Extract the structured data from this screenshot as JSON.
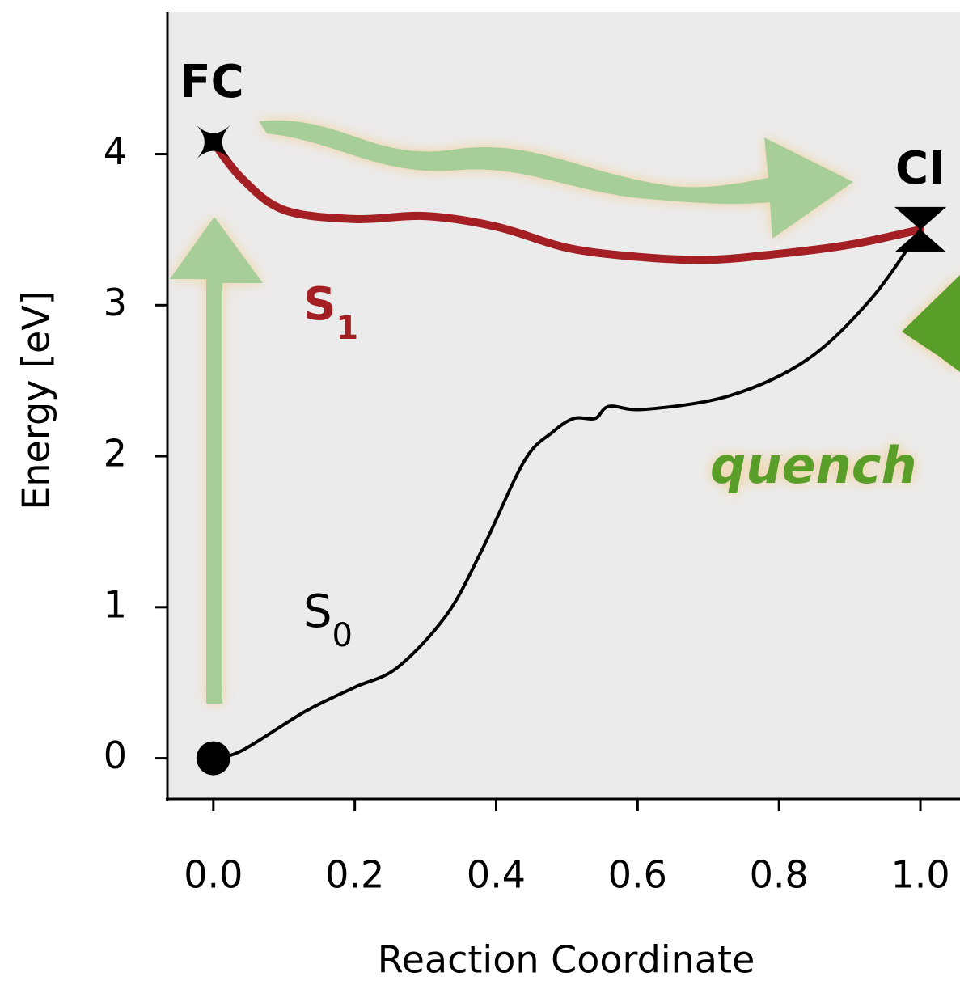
{
  "chart_data": {
    "type": "line",
    "xlabel": "Reaction Coordinate",
    "ylabel": "Energy [eV]",
    "xlim": [
      -0.065,
      1.056
    ],
    "ylim": [
      -0.27,
      4.94
    ],
    "xticks": [
      {
        "value": 0,
        "label": "0.0"
      },
      0.2,
      0.4,
      0.6,
      0.8,
      {
        "value": 1,
        "label": "1.0"
      }
    ],
    "yticks": [
      0,
      1,
      2,
      3,
      4
    ],
    "series": [
      {
        "name": "S",
        "subscript": "1",
        "color": "#a31f24",
        "x": [
          0,
          0.04,
          0.1,
          0.2,
          0.3,
          0.4,
          0.5,
          0.6,
          0.7,
          0.8,
          0.9,
          1.0
        ],
        "values": [
          4.08,
          3.84,
          3.63,
          3.57,
          3.59,
          3.52,
          3.38,
          3.32,
          3.3,
          3.34,
          3.4,
          3.5
        ]
      },
      {
        "name": "S",
        "subscript": "0",
        "color": "#000000",
        "x": [
          0,
          0.04,
          0.13,
          0.2,
          0.26,
          0.33,
          0.38,
          0.44,
          0.48,
          0.51,
          0.54,
          0.56,
          0.61,
          0.73,
          0.84,
          0.93,
          1.0
        ],
        "values": [
          0,
          0.05,
          0.31,
          0.47,
          0.6,
          0.95,
          1.38,
          1.97,
          2.16,
          2.25,
          2.25,
          2.33,
          2.31,
          2.4,
          2.64,
          3.04,
          3.5
        ]
      }
    ],
    "annotations": {
      "fc": "FC",
      "ci": "CI",
      "quench": "quench"
    }
  }
}
